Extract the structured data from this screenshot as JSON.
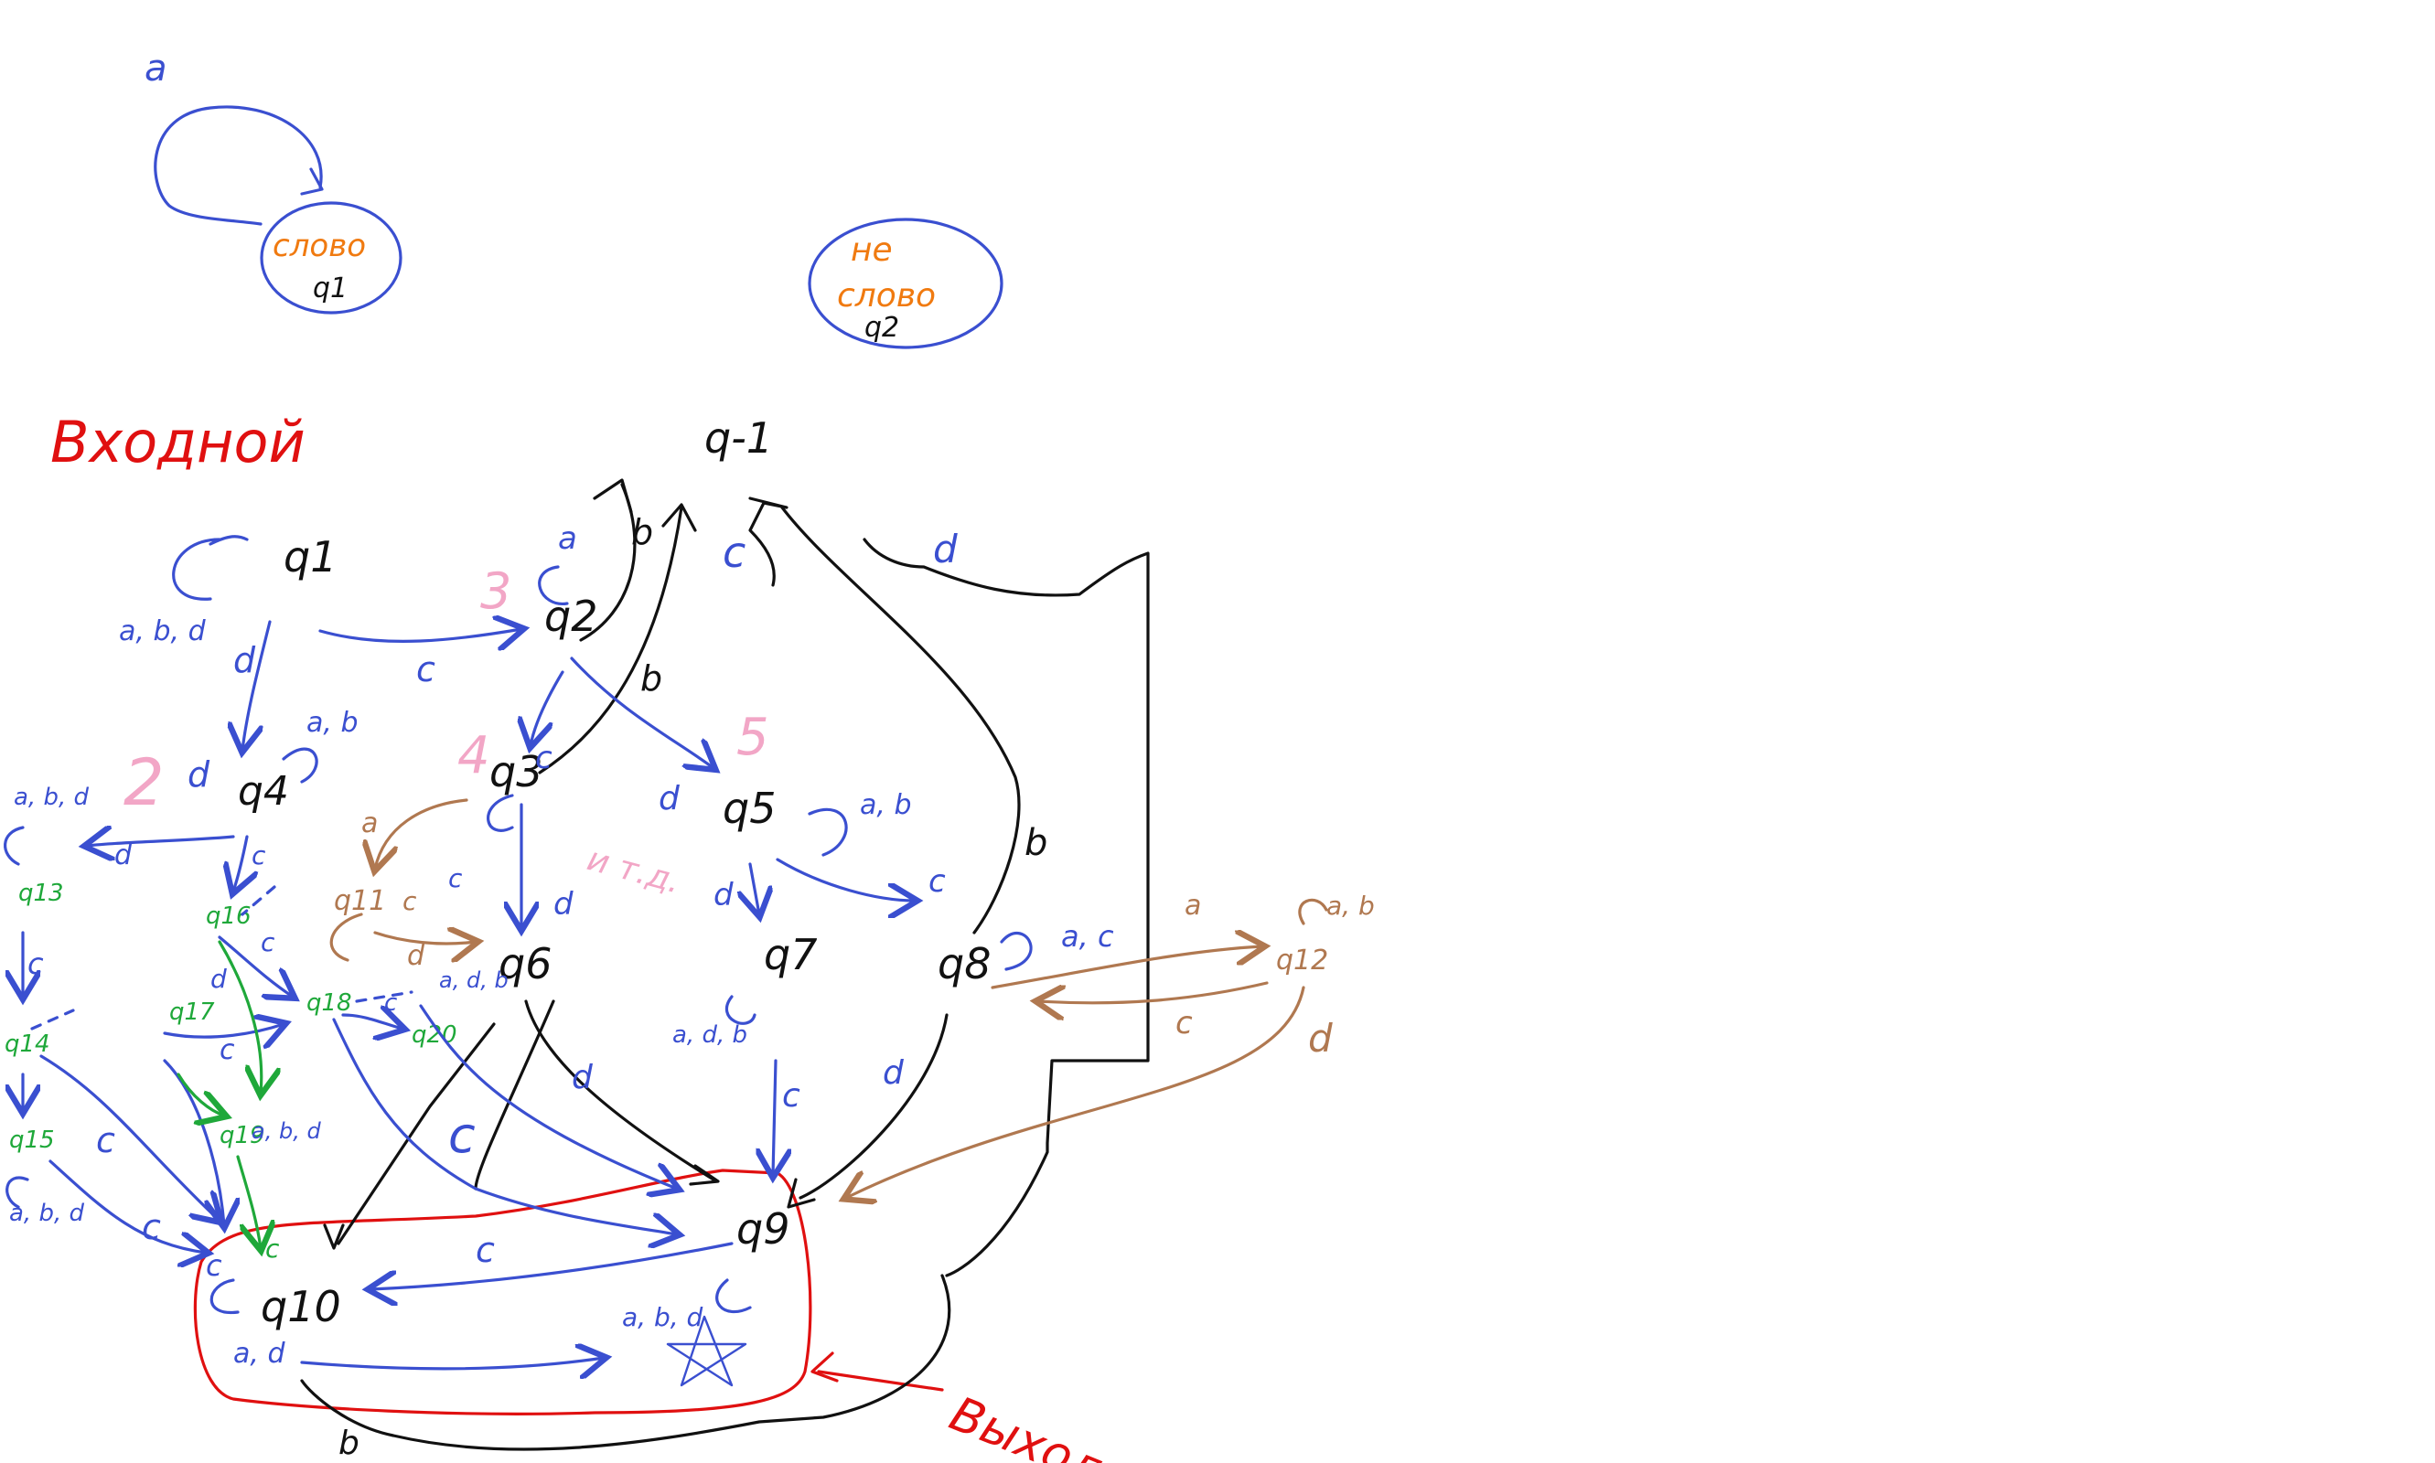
{
  "colors": {
    "black": "#111111",
    "blue": "#3a4fd0",
    "red": "#e01010",
    "orange": "#f07a10",
    "pink": "#f2a6c6",
    "brown": "#b07850",
    "green": "#1fa83a"
  },
  "legend": {
    "word_accept_state": {
      "loop_label": "a",
      "text": "слово",
      "state": "q1"
    },
    "word_reject_state": {
      "line1": "не",
      "line2": "слово",
      "state": "q2"
    }
  },
  "labels": {
    "input": "Входной",
    "output": "Выходные"
  },
  "states": {
    "q_minus1": "q-1",
    "q1": "q1",
    "q2": "q2",
    "q3": "q3",
    "q4": "q4",
    "q5": "q5",
    "q6": "q6",
    "q7": "q7",
    "q8": "q8",
    "q9": "q9",
    "q10": "q10",
    "q11": "q11",
    "q12": "q12",
    "q13": "q13",
    "q14": "q14",
    "q15": "q15",
    "q16": "q16",
    "q17": "q17",
    "q18": "q18",
    "q19": "q19",
    "q20": "q20"
  },
  "pink_numbers": [
    "3",
    "2",
    "4",
    "5",
    "и т.д."
  ],
  "edge_labels": {
    "q1_loop": "a, b, d",
    "q1_to_q2": "c",
    "q1_to_q4": "d",
    "q2_loop": "a",
    "q2_to_q3": "c",
    "q2_to_q5": "d",
    "q2_to_qm1": "b",
    "q3_to_qm1": "b",
    "q3_to_q6": "d",
    "q3_to_q11": "a",
    "q4_loop": "a, b",
    "q4_to_q13": "d",
    "q4_to_q16": "c",
    "q4_pink": "d",
    "q5_loop": "a, b",
    "q5_to_q8": "c",
    "q5_to_q7": "d",
    "q6_to_q9": "d",
    "q6_to_q10": "c",
    "q7_loop": "a, d, b",
    "q7_to_q9": "c",
    "q8_loop": "a, c",
    "q8_to_q9": "d",
    "q8_to_q12": "a",
    "q8_to_qm1": "b",
    "q12_loop": "a, b",
    "q12_to_q8": "c",
    "q12_to_q9": "d",
    "q9_loop": "a, b, d",
    "q9_to_q10": "c",
    "q10_loop": "c",
    "q10_labels": "a, d",
    "q10_to_q9": "b",
    "qm1_c": "c",
    "qm1_d": "d",
    "q13_loop": "a, b, d",
    "q13_c": "c",
    "q14_c": "c",
    "q15_loop": "a, b, d",
    "q15_c": "c",
    "q16_c": "c",
    "q16_d": "d",
    "q17_c": "c",
    "q18_c": "c",
    "q19_c": "c",
    "q19_labels": "a, b, d",
    "q11_c": "c",
    "q11_d": "d",
    "q11_c2": "c",
    "q20_labels": "a, d, b"
  }
}
